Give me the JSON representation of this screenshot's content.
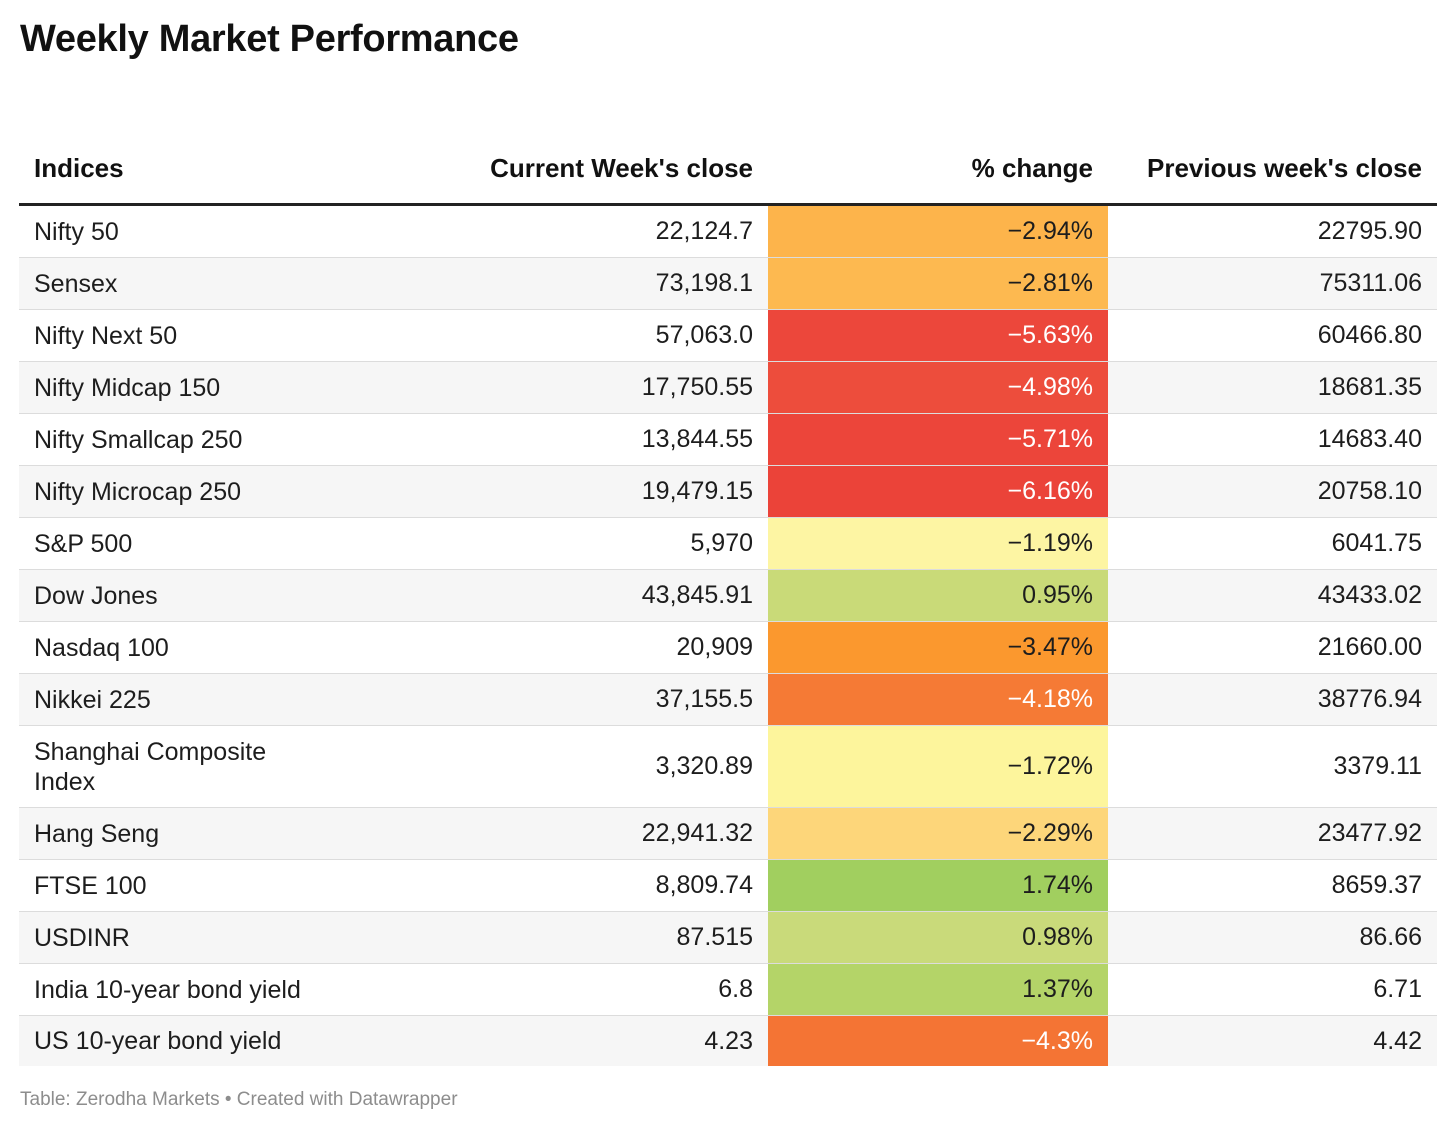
{
  "title": "Weekly Market Performance",
  "footer": "Table: Zerodha Markets • Created with Datawrapper",
  "chart_data": {
    "type": "table",
    "columns": [
      "Indices",
      "Current Week's close",
      "% change",
      "Previous week's close"
    ],
    "rows": [
      {
        "index": "Nifty 50",
        "current": "22,124.7",
        "change": "−2.94%",
        "change_value": -2.94,
        "previous": "22795.90",
        "color": "#fdb44b",
        "text_color": "#1d1d1d"
      },
      {
        "index": "Sensex",
        "current": "73,198.1",
        "change": "−2.81%",
        "change_value": -2.81,
        "previous": "75311.06",
        "color": "#fdb950",
        "text_color": "#1d1d1d"
      },
      {
        "index": "Nifty Next 50",
        "current": "57,063.0",
        "change": "−5.63%",
        "change_value": -5.63,
        "previous": "60466.80",
        "color": "#ec473b",
        "text_color": "#ffffff"
      },
      {
        "index": "Nifty Midcap 150",
        "current": "17,750.55",
        "change": "−4.98%",
        "change_value": -4.98,
        "previous": "18681.35",
        "color": "#ed4d3c",
        "text_color": "#ffffff"
      },
      {
        "index": "Nifty Smallcap 250",
        "current": "13,844.55",
        "change": "−5.71%",
        "change_value": -5.71,
        "previous": "14683.40",
        "color": "#ec453a",
        "text_color": "#ffffff"
      },
      {
        "index": "Nifty Microcap 250",
        "current": "19,479.15",
        "change": "−6.16%",
        "change_value": -6.16,
        "previous": "20758.10",
        "color": "#eb4339",
        "text_color": "#ffffff"
      },
      {
        "index": "S&P 500",
        "current": "5,970",
        "change": "−1.19%",
        "change_value": -1.19,
        "previous": "6041.75",
        "color": "#fdf5a3",
        "text_color": "#1d1d1d"
      },
      {
        "index": "Dow Jones",
        "current": "43,845.91",
        "change": "0.95%",
        "change_value": 0.95,
        "previous": "43433.02",
        "color": "#c9da78",
        "text_color": "#1d1d1d"
      },
      {
        "index": "Nasdaq 100",
        "current": "20,909",
        "change": "−3.47%",
        "change_value": -3.47,
        "previous": "21660.00",
        "color": "#fb982e",
        "text_color": "#1d1d1d"
      },
      {
        "index": "Nikkei 225",
        "current": "37,155.5",
        "change": "−4.18%",
        "change_value": -4.18,
        "previous": "38776.94",
        "color": "#f57a35",
        "text_color": "#ffffff"
      },
      {
        "index": "Shanghai Composite Index",
        "current": "3,320.89",
        "change": "−1.72%",
        "change_value": -1.72,
        "previous": "3379.11",
        "color": "#fdf59c",
        "text_color": "#1d1d1d"
      },
      {
        "index": "Hang Seng",
        "current": "22,941.32",
        "change": "−2.29%",
        "change_value": -2.29,
        "previous": "23477.92",
        "color": "#fdd67a",
        "text_color": "#1d1d1d"
      },
      {
        "index": "FTSE 100",
        "current": "8,809.74",
        "change": "1.74%",
        "change_value": 1.74,
        "previous": "8659.37",
        "color": "#a1cf5f",
        "text_color": "#1d1d1d"
      },
      {
        "index": "USDINR",
        "current": "87.515",
        "change": "0.98%",
        "change_value": 0.98,
        "previous": "86.66",
        "color": "#c9da7a",
        "text_color": "#1d1d1d"
      },
      {
        "index": "India 10-year bond yield",
        "current": "6.8",
        "change": "1.37%",
        "change_value": 1.37,
        "previous": "6.71",
        "color": "#b4d468",
        "text_color": "#1d1d1d"
      },
      {
        "index": "US 10-year bond yield",
        "current": "4.23",
        "change": "−4.3%",
        "change_value": -4.3,
        "previous": "4.42",
        "color": "#f47434",
        "text_color": "#ffffff"
      }
    ]
  }
}
